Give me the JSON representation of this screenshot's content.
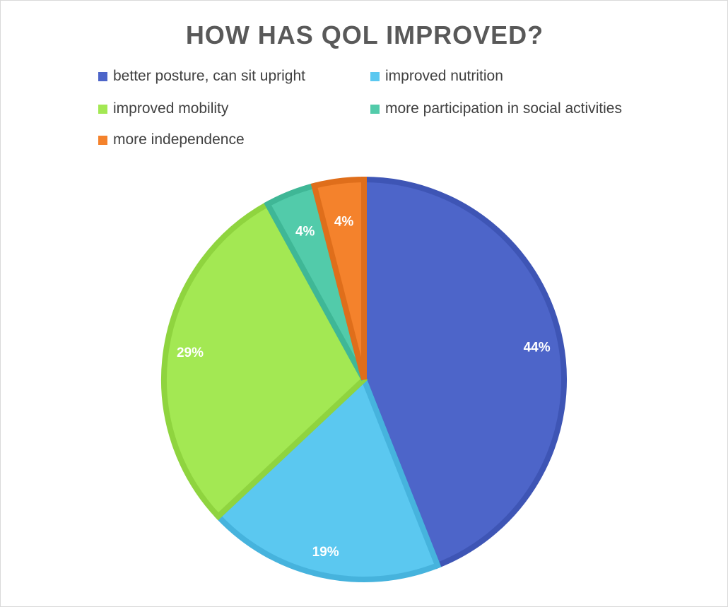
{
  "chart_data": {
    "type": "pie",
    "title": "HOW HAS QOL IMPROVED?",
    "legend_position": "top",
    "slices": [
      {
        "label": "better posture, can sit upright",
        "value": 44,
        "display": "44%",
        "color": "#4d65c9",
        "border": "#3e55b5"
      },
      {
        "label": "improved nutrition",
        "value": 19,
        "display": "19%",
        "color": "#5bc8f0",
        "border": "#46b3dd"
      },
      {
        "label": "improved mobility",
        "value": 29,
        "display": "29%",
        "color": "#a3e853",
        "border": "#8fd43f"
      },
      {
        "label": "more participation in social activities",
        "value": 4,
        "display": "4%",
        "color": "#52cbaa",
        "border": "#3fb796"
      },
      {
        "label": "more independence",
        "value": 4,
        "display": "4%",
        "color": "#f4822c",
        "border": "#df6e1b"
      }
    ]
  }
}
